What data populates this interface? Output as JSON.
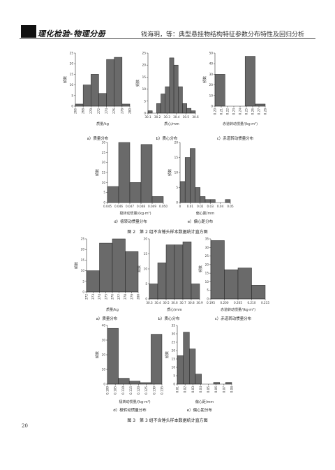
{
  "header": {
    "logo_text": "理化检验-物理分册",
    "running_title": "钱海玥，等：典型悬挂物结构特征参数分布特性及回归分析"
  },
  "figure2": {
    "caption": "图 2　第 2 组不含锤头样本数据统计直方图"
  },
  "figure3": {
    "caption": "图 3　第 3 组不含锤头样本数据统计直方图"
  },
  "page_number": "20",
  "chart_data": [
    {
      "id": "f2a",
      "type": "bar",
      "caption": "a）质量分布",
      "xlabel": "质量/kg",
      "ylabel": "频数",
      "ylim": [
        0,
        25
      ],
      "yticks": [
        0,
        5,
        10,
        15,
        20,
        25
      ],
      "xticks": [
        "266",
        "268",
        "270",
        "272",
        "274",
        "276",
        "278",
        "280"
      ],
      "values": [
        1,
        10,
        15,
        6,
        22,
        23,
        1
      ]
    },
    {
      "id": "f2b",
      "type": "bar",
      "caption": "b）质心分布",
      "xlabel": "质心/mm",
      "ylabel": "频数",
      "ylim": [
        0,
        25
      ],
      "yticks": [
        0,
        5,
        10,
        15,
        20,
        25
      ],
      "xticks": [
        "30.1",
        "30.2",
        "30.3",
        "30.4",
        "30.5",
        "30.6"
      ],
      "values": [
        1,
        0,
        4,
        8,
        11,
        23,
        20,
        11,
        4,
        2,
        1
      ]
    },
    {
      "id": "f2c",
      "type": "bar",
      "caption": "c）赤道转动惯量分布",
      "xlabel": "赤道转动惯量/(kg·m²)",
      "ylabel": "频数",
      "ylim": [
        0,
        50
      ],
      "yticks": [
        0,
        10,
        20,
        30,
        40,
        50
      ],
      "xticks": [
        "0.20",
        "0.21",
        "0.22",
        "0.23",
        "0.24",
        "0.25",
        "0.26",
        "0.27",
        "0.28"
      ],
      "values": [
        30,
        0,
        0,
        47,
        2
      ]
    },
    {
      "id": "f2d",
      "type": "bar",
      "caption": "d）极转动惯量分布",
      "xlabel": "极转动惯量/(kg·m²)",
      "ylabel": "频数",
      "ylim": [
        0,
        30
      ],
      "yticks": [
        0,
        5,
        10,
        15,
        20,
        25,
        30
      ],
      "xticks": [
        "0.045",
        "0.046",
        "0.047",
        "0.048",
        "0.049",
        "0.050"
      ],
      "values": [
        8,
        30,
        10,
        29,
        3
      ]
    },
    {
      "id": "f2e",
      "type": "bar",
      "caption": "e）偏心距分布",
      "xlabel": "偏心距/mm",
      "ylabel": "频数",
      "ylim": [
        0,
        20
      ],
      "yticks": [
        0,
        5,
        10,
        15,
        20
      ],
      "xticks": [
        "0",
        "0.01",
        "0.02",
        "0.03",
        "0.04",
        "0.05"
      ],
      "values": [
        7,
        15,
        18,
        5,
        2,
        1,
        1,
        0,
        0,
        1
      ]
    },
    {
      "id": "f3a",
      "type": "bar",
      "caption": "a）质量分布",
      "xlabel": "质量/kg",
      "ylabel": "频数",
      "ylim": [
        0,
        25
      ],
      "yticks": [
        0,
        5,
        10,
        15,
        20,
        25
      ],
      "xticks": [
        "272",
        "273",
        "274",
        "275",
        "276",
        "277",
        "278",
        "279",
        "280"
      ],
      "values": [
        10,
        23,
        25,
        19
      ]
    },
    {
      "id": "f3b",
      "type": "bar",
      "caption": "b）质心分布",
      "xlabel": "质心/mm",
      "ylabel": "频数",
      "ylim": [
        0,
        20
      ],
      "yticks": [
        0,
        5,
        10,
        15,
        20
      ],
      "xticks": [
        "30.3",
        "30.4",
        "30.5",
        "30.6",
        "30.7",
        "30.8",
        "30.9"
      ],
      "values": [
        5,
        12,
        18,
        18,
        19,
        5
      ]
    },
    {
      "id": "f3c",
      "type": "bar",
      "caption": "c）赤道转动惯量分布",
      "xlabel": "赤道转动惯量/(kg·m²)",
      "ylabel": "频数",
      "ylim": [
        0,
        35
      ],
      "yticks": [
        0,
        5,
        10,
        15,
        20,
        25,
        30,
        35
      ],
      "xticks": [
        "0.195",
        "0.200",
        "0.205",
        "0.210",
        "0.215"
      ],
      "values": [
        34,
        17,
        18,
        8
      ]
    },
    {
      "id": "f3d",
      "type": "bar",
      "caption": "d）极转动惯量分布",
      "xlabel": "极转动惯量/(kg·m²)",
      "ylabel": "频数",
      "ylim": [
        0,
        40
      ],
      "yticks": [
        0,
        10,
        20,
        30,
        40
      ],
      "xticks": [
        "0.100",
        "0.105",
        "0.110",
        "0.115",
        "0.120",
        "0.125",
        "0.130",
        "0.135"
      ],
      "values": [
        38,
        4,
        2,
        1,
        34
      ]
    },
    {
      "id": "f3e",
      "type": "bar",
      "caption": "e）偏心距分布",
      "xlabel": "偏心距/mm",
      "ylabel": "频数",
      "ylim": [
        0,
        35
      ],
      "yticks": [
        0,
        5,
        10,
        15,
        20,
        25,
        30,
        35
      ],
      "xticks": [
        "0.01",
        "0.02",
        "0.03",
        "0.04",
        "0.05",
        "0.06",
        "0.07",
        "0.08"
      ],
      "values": [
        17,
        31,
        21,
        6,
        0,
        0,
        1,
        0,
        1
      ]
    }
  ]
}
